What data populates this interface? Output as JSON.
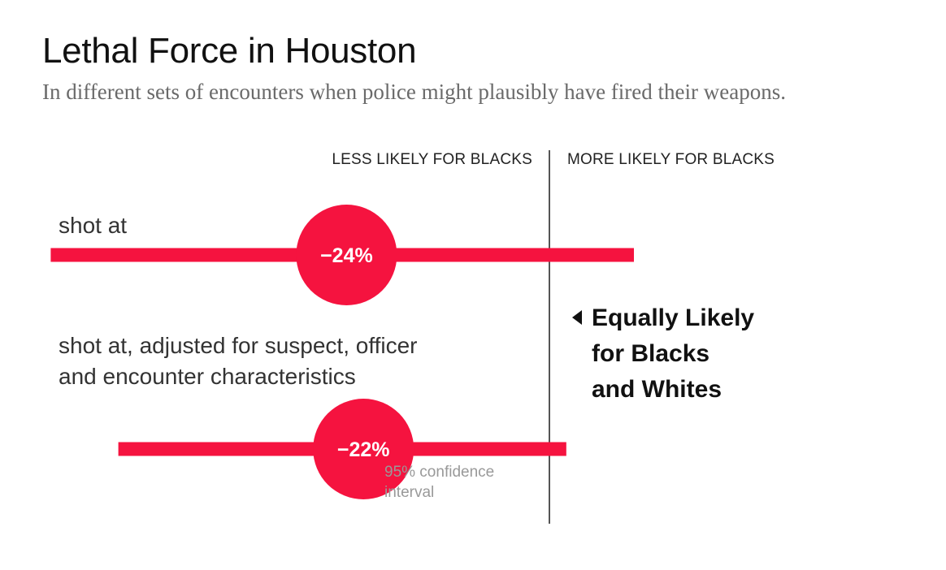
{
  "header": {
    "title": "Lethal Force in Houston",
    "subtitle": "In different sets of encounters when police might plausibly have fired their weapons."
  },
  "axis_labels": {
    "left": "LESS LIKELY FOR BLACKS",
    "right": "MORE LIKELY FOR BLACKS"
  },
  "annotations": {
    "equal_line1": "Equally Likely",
    "equal_line2": "for Blacks",
    "equal_line3": "and Whites",
    "ci_line1": "95% confidence",
    "ci_line2": "interval"
  },
  "colors": {
    "accent": "#f5133f",
    "axis": "#555555",
    "label_text": "#333333"
  },
  "chart_data": {
    "type": "dot-interval",
    "x_unit": "percent difference",
    "reference_value": 0,
    "xlim": [
      -60,
      10
    ],
    "series": [
      {
        "label_line1": "shot at",
        "label_line2": "",
        "estimate": -24,
        "estimate_label": "−24%",
        "ci": [
          -59,
          10
        ]
      },
      {
        "label_line1": "shot at, adjusted for suspect, officer",
        "label_line2": "and encounter characteristics",
        "estimate": -22,
        "estimate_label": "−22%",
        "ci": [
          -51,
          2
        ]
      }
    ]
  }
}
